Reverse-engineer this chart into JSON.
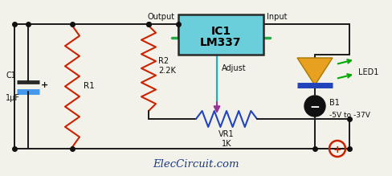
{
  "bg_color": "#f2f2ea",
  "title_text": "ElecCircuit.com",
  "wire_color": "#1a1a1a",
  "ic_box_color": "#6bcfdb",
  "ic_box_edge": "#2a2a2a",
  "ic_label_1": "IC1",
  "ic_label_2": "LM337",
  "r1_color": "#cc2200",
  "r2_color": "#cc2200",
  "vr1_color": "#2244bb",
  "cap_color_top": "#2a2a2a",
  "cap_color_bot": "#4499ee",
  "led_body_color": "#e8a020",
  "led_base_color": "#2244bb",
  "led_arrow_color": "#00aa00",
  "ground_color": "#cc2200",
  "adjust_wire_color": "#00bbcc",
  "arrow_color": "#993399",
  "junction_color": "#111111",
  "label_color": "#111111",
  "note_color": "#111111",
  "footer_color": "#1a3a88",
  "green_pin_color": "#22aa44",
  "b1_color": "#111111"
}
